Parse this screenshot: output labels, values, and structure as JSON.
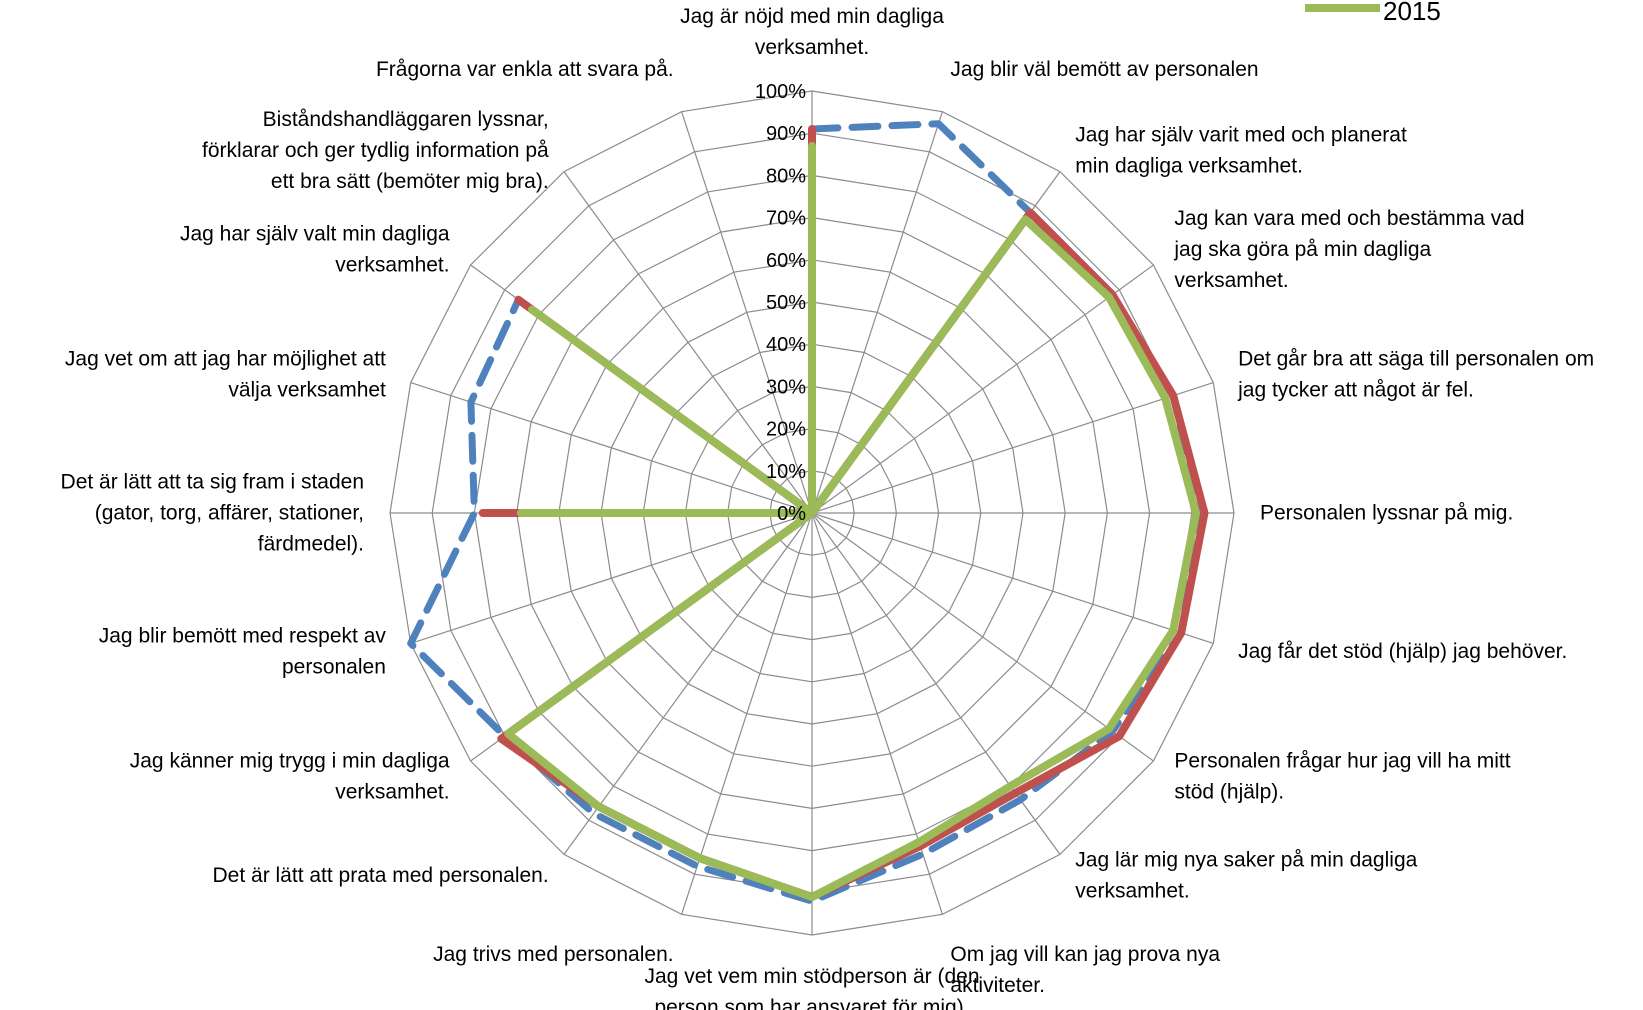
{
  "chart_data": {
    "type": "radar",
    "title": "",
    "axis_labels": [
      [
        "Jag är nöjd med min dagliga",
        "verksamhet."
      ],
      [
        "Jag blir väl bemött av personalen"
      ],
      [
        "Jag har själv varit med och planerat",
        "min dagliga verksamhet."
      ],
      [
        "Jag kan vara med och bestämma vad",
        "jag ska göra på min dagliga",
        "verksamhet."
      ],
      [
        "Det går bra att säga till personalen om",
        "jag tycker att något är fel."
      ],
      [
        "Personalen lyssnar på mig."
      ],
      [
        "Jag får det stöd (hjälp) jag behöver."
      ],
      [
        "Personalen frågar hur jag vill ha mitt",
        "stöd (hjälp)."
      ],
      [
        "Jag lär mig nya saker på min dagliga",
        "verksamhet."
      ],
      [
        "Om jag vill kan jag prova nya",
        "aktiviteter."
      ],
      [
        "Jag vet vem min stödperson är (den",
        "person som har ansvaret för mig)."
      ],
      [
        "Jag trivs med personalen."
      ],
      [
        "Det är lätt att prata med personalen."
      ],
      [
        "Jag känner mig trygg i min dagliga",
        "verksamhet."
      ],
      [
        "Jag blir bemött med respekt av",
        "personalen"
      ],
      [
        "Det är lätt att ta sig fram i staden",
        "(gator, torg, affärer, stationer,",
        "färdmedel)."
      ],
      [
        "Jag vet om att jag har möjlighet att",
        "välja verksamhet"
      ],
      [
        "Jag har själv valt min dagliga",
        "verksamhet."
      ],
      [
        "Biståndshandläggaren lyssnar,",
        "förklarar och ger tydlig information på",
        "ett bra sätt (bemöter mig bra)."
      ],
      [
        "Frågorna var enkla att svara på."
      ]
    ],
    "tick_labels": [
      "0%",
      "10%",
      "20%",
      "30%",
      "40%",
      "50%",
      "60%",
      "70%",
      "80%",
      "90%",
      "100%"
    ],
    "rlim": [
      0,
      100
    ],
    "grid": true,
    "series": [
      {
        "name": "",
        "color": "#4f81bd",
        "style": "dashed",
        "values": [
          91,
          97,
          88,
          88,
          90,
          92,
          92,
          88,
          84,
          85,
          92,
          88,
          88,
          90,
          100,
          80,
          85,
          86,
          0,
          0
        ]
      },
      {
        "name": "",
        "color": "#c0504d",
        "style": "solid",
        "values": [
          91,
          0,
          88,
          88,
          90,
          93,
          92,
          90,
          82,
          83,
          91,
          86,
          86,
          91,
          0,
          78,
          0,
          86,
          0,
          0
        ]
      },
      {
        "name": "2015",
        "color": "#9bbb59",
        "style": "solid",
        "values": [
          87,
          0,
          86,
          87,
          88,
          91,
          90,
          87,
          80,
          82,
          91,
          86,
          86,
          89,
          0,
          69,
          0,
          82,
          0,
          0
        ]
      }
    ],
    "legend": {
      "position": "top-right",
      "entries": [
        "2015"
      ]
    }
  }
}
